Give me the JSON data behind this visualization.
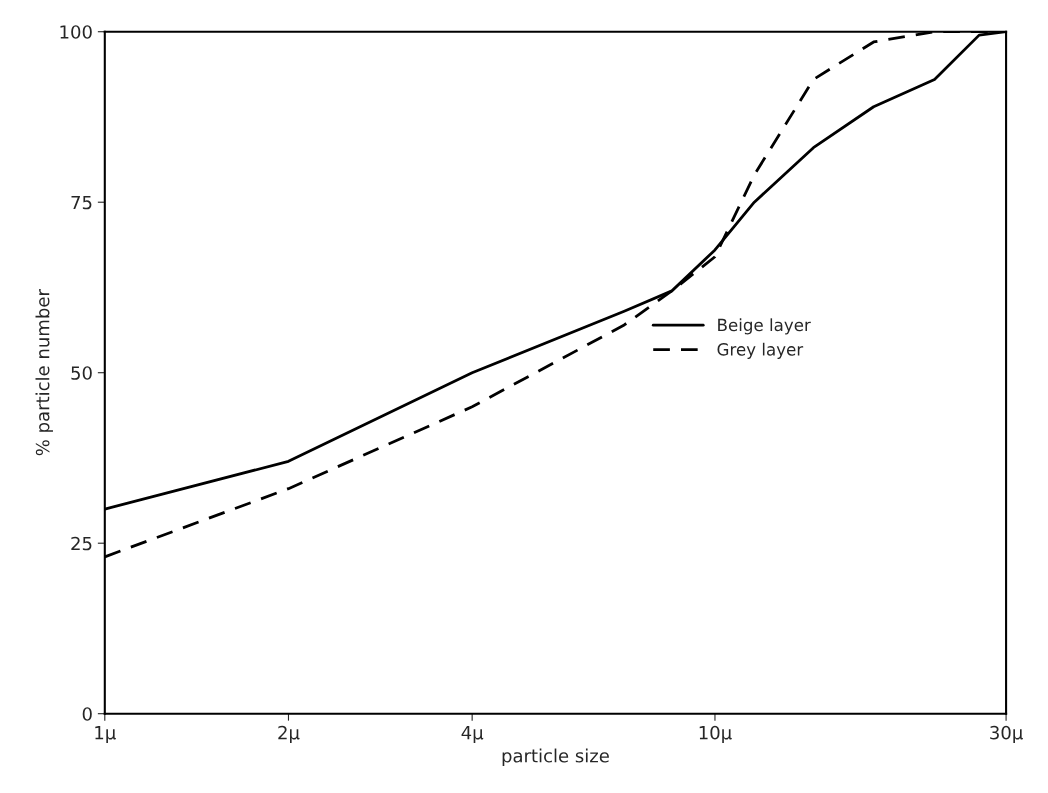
{
  "chart_data": {
    "type": "line",
    "xlabel": "particle size",
    "ylabel": "% particle number",
    "log": "x",
    "xlim": [
      1,
      30
    ],
    "xticks": [
      {
        "value": 1,
        "label": "1μ"
      },
      {
        "value": 2,
        "label": "2μ"
      },
      {
        "value": 4,
        "label": "4μ"
      },
      {
        "value": 10,
        "label": "10μ"
      },
      {
        "value": 30,
        "label": "30μ"
      }
    ],
    "ylim": [
      0,
      100
    ],
    "yticks": [
      0,
      25,
      50,
      75,
      100
    ],
    "x": [
      1,
      2,
      4,
      7.1,
      8.5,
      10,
      11.6,
      14.5,
      18.2,
      22.9,
      27.1,
      30
    ],
    "grid": false,
    "legend": "right",
    "series": [
      {
        "name": "Beige layer",
        "color": "#000000",
        "line_style": "solid",
        "values": [
          30,
          37,
          50,
          59,
          62,
          68,
          75,
          83,
          89,
          93,
          99.5,
          100
        ]
      },
      {
        "name": "Grey layer",
        "color": "#000000",
        "line_style": "dashed",
        "values": [
          23,
          33,
          45,
          57,
          62,
          67,
          79,
          93,
          98.5,
          100,
          100,
          100
        ]
      }
    ]
  }
}
